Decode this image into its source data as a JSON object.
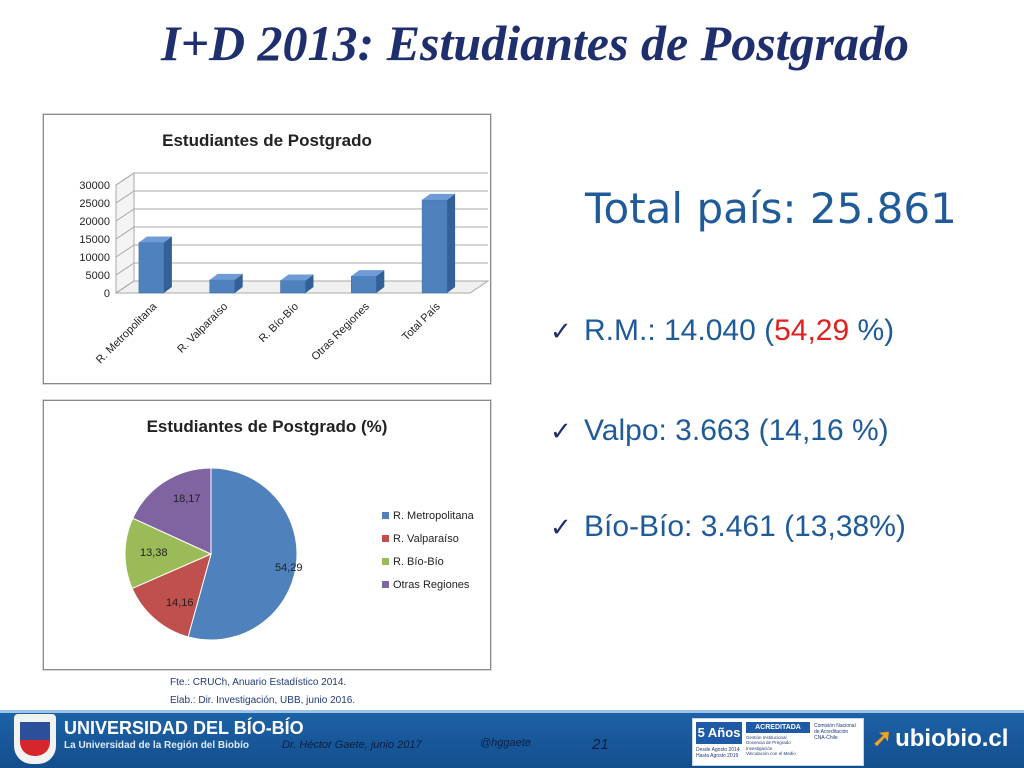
{
  "slide": {
    "title": "I+D 2013: Estudiantes de Postgrado",
    "total": "Total país: 25.861",
    "stats": [
      {
        "label": "R.M.:  14.040 (",
        "highlight": "54,29",
        "suffix": " %)"
      },
      {
        "label": "Valpo: 3.663  (14,16 %)"
      },
      {
        "label": "Bío-Bío: 3.461 (13,38%)"
      }
    ],
    "source_lines": [
      "Fte.: CRUCh, Anuario Estadístico 2014.",
      "Elab.: Dir. Investigación, UBB, junio 2016."
    ],
    "check_glyph": "✓"
  },
  "footer": {
    "university": "UNIVERSIDAD DEL BÍO-BÍO",
    "tagline": "La Universidad de la Región del Biobío",
    "author": "Dr. Héctor Gaete,  junio 2017",
    "handle": "@hggaete",
    "page_number": "21",
    "badge_years": "5 Años",
    "badge_status": "ACREDITADA",
    "badge_areas": [
      "Gestión Institucional",
      "Docencia de Pregrado",
      "Investigación",
      "Vinculación con el Medio"
    ],
    "badge_dates": [
      "Desde Agosto 2014",
      "Hasta Agosto 2019"
    ],
    "badge_org": [
      "Comisión Nacional",
      "de Acreditación",
      "CNA-Chile"
    ],
    "site": "ubiobio.cl",
    "colors": {
      "footer_bg": "#1d63a8",
      "accent_orange": "#f7a21b"
    }
  },
  "chart_data": [
    {
      "type": "bar",
      "title": "Estudiantes de Postgrado",
      "categories": [
        "R. Metropolitana",
        "R. Valparaíso",
        "R. Bío-Bío",
        "Otras Regiones",
        "Total País"
      ],
      "values": [
        14040,
        3663,
        3461,
        4697,
        25861
      ],
      "ylim": [
        0,
        30000
      ],
      "yticks": [
        "0",
        "5000",
        "10000",
        "15000",
        "20000",
        "25000",
        "30000"
      ],
      "yticks_values": [
        0,
        5000,
        10000,
        15000,
        20000,
        25000,
        30000
      ],
      "grid": true,
      "color": "#4f81bd"
    },
    {
      "type": "pie",
      "title": "Estudiantes de Postgrado (%)",
      "labels": [
        "R. Metropolitana",
        "R. Valparaíso",
        "R. Bío-Bío",
        "Otras Regiones"
      ],
      "values": [
        54.29,
        14.16,
        13.38,
        18.17
      ],
      "value_labels": [
        "54,29",
        "14,16",
        "13,38",
        "18,17"
      ],
      "colors": [
        "#4f81bd",
        "#c0504d",
        "#9bbb59",
        "#8064a2"
      ],
      "legend_position": "right"
    }
  ]
}
